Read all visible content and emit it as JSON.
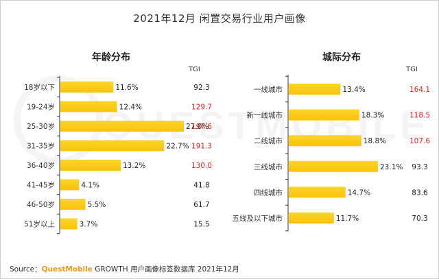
{
  "title": "2021年12月 闲置交易行业用户画像",
  "source": {
    "label": "Source：",
    "brand": "QuestMobile",
    "text": "GROWTH 用户画像标签数据库 2021年12月"
  },
  "tgi_label": "TGI",
  "colors": {
    "bar_start": "#f9c20c",
    "bar_end": "#fbd52a",
    "highlight": "#e02020",
    "normal": "#222222"
  },
  "chart_data": [
    {
      "type": "bar",
      "orientation": "horizontal",
      "title": "年龄分布",
      "categories": [
        "18岁以下",
        "19-24岁",
        "25-30岁",
        "31-35岁",
        "36-40岁",
        "41-45岁",
        "46-50岁",
        "51岁以上"
      ],
      "values": [
        11.6,
        12.4,
        27.0,
        22.7,
        13.2,
        4.1,
        5.5,
        3.7
      ],
      "value_labels": [
        "11.6%",
        "12.4%",
        "27.0%",
        "22.7%",
        "13.2%",
        "4.1%",
        "5.5%",
        "3.7%"
      ],
      "tgi": [
        "92.3",
        "129.7",
        "197.6",
        "191.3",
        "130.0",
        "41.8",
        "61.7",
        "15.5"
      ],
      "tgi_highlight": [
        false,
        true,
        true,
        true,
        true,
        false,
        false,
        false
      ],
      "xlim": [
        0,
        27.0
      ]
    },
    {
      "type": "bar",
      "orientation": "horizontal",
      "title": "城际分布",
      "categories": [
        "一线城市",
        "新一线城市",
        "二线城市",
        "三线城市",
        "四线城市",
        "五线及以下城市"
      ],
      "values": [
        13.4,
        18.3,
        18.8,
        23.1,
        14.7,
        11.7
      ],
      "value_labels": [
        "13.4%",
        "18.3%",
        "18.8%",
        "23.1%",
        "14.7%",
        "11.7%"
      ],
      "tgi": [
        "164.1",
        "118.5",
        "107.6",
        "93.3",
        "83.6",
        "70.3"
      ],
      "tgi_highlight": [
        true,
        true,
        true,
        false,
        false,
        false
      ],
      "xlim": [
        0,
        23.1
      ]
    }
  ]
}
